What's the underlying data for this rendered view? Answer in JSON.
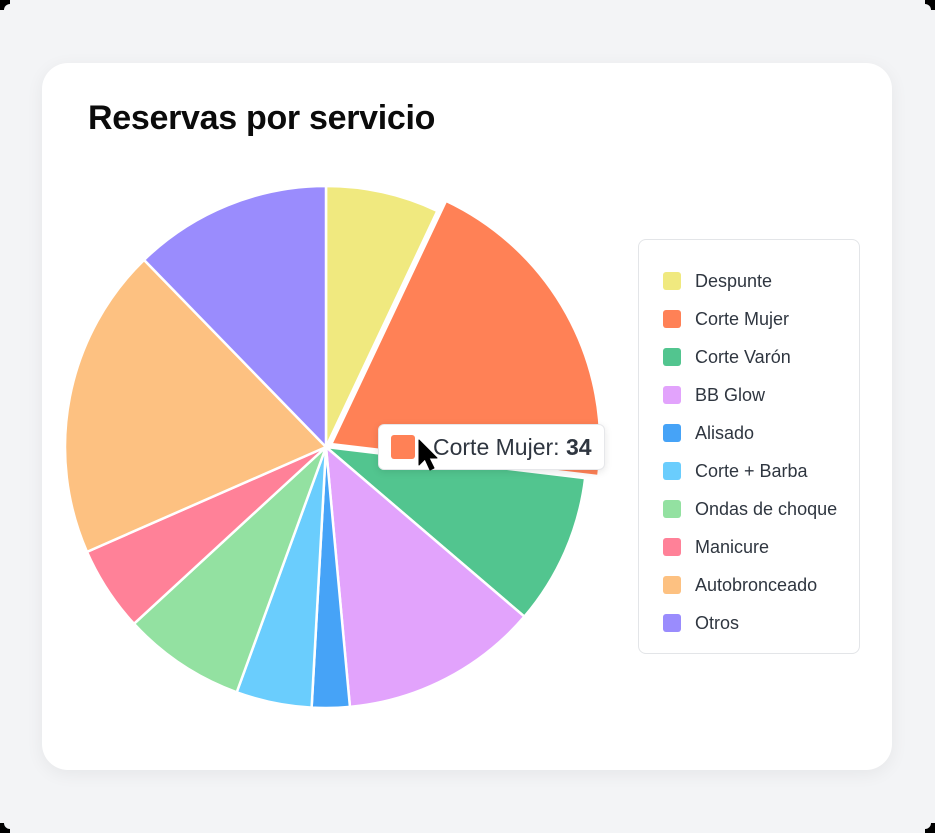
{
  "card": {
    "title": "Reservas por servicio"
  },
  "tooltip": {
    "label": "Corte Mujer",
    "separator": ": ",
    "value": "34",
    "color": "#ff8156"
  },
  "legend": {
    "items": [
      {
        "label": "Despunte",
        "color": "#f0e97f"
      },
      {
        "label": "Corte Mujer",
        "color": "#ff8156"
      },
      {
        "label": "Corte Varón",
        "color": "#52c58f"
      },
      {
        "label": "BB Glow",
        "color": "#e2a3fc"
      },
      {
        "label": "Alisado",
        "color": "#46a3f7"
      },
      {
        "label": "Corte + Barba",
        "color": "#6acdfd"
      },
      {
        "label": "Ondas de choque",
        "color": "#93e1a1"
      },
      {
        "label": "Manicure",
        "color": "#ff8198"
      },
      {
        "label": "Autobronceado",
        "color": "#fdc181"
      },
      {
        "label": "Otros",
        "color": "#9a8cfd"
      }
    ]
  },
  "chart_data": {
    "type": "pie",
    "title": "Reservas por servicio",
    "categories": [
      "Despunte",
      "Corte Mujer",
      "Corte Varón",
      "BB Glow",
      "Alisado",
      "Corte + Barba",
      "Ondas de choque",
      "Manicure",
      "Autobronceado",
      "Otros"
    ],
    "values": [
      12,
      34,
      16,
      21,
      4,
      8,
      13,
      9,
      33,
      21
    ],
    "colors": [
      "#f0e97f",
      "#ff8156",
      "#52c58f",
      "#e2a3fc",
      "#46a3f7",
      "#6acdfd",
      "#93e1a1",
      "#ff8198",
      "#fdc181",
      "#9a8cfd"
    ],
    "highlighted": "Corte Mujer",
    "legend_position": "right",
    "start_angle": "top, clockwise"
  }
}
